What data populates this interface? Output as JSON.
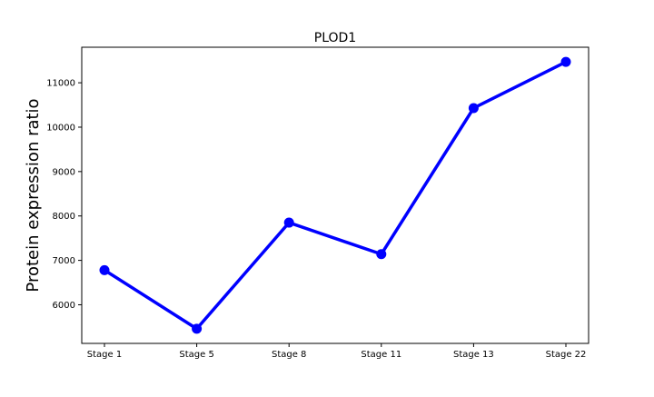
{
  "chart_data": {
    "type": "line",
    "title": "PLOD1",
    "xlabel": "",
    "ylabel": "Protein expression ratio",
    "categories": [
      "Stage 1",
      "Stage 5",
      "Stage 8",
      "Stage 11",
      "Stage 13",
      "Stage 22"
    ],
    "series": [
      {
        "values": [
          6780,
          5460,
          7850,
          7140,
          10430,
          11470
        ],
        "color": "#0000ff",
        "marker": "circle"
      }
    ],
    "ylim": [
      5130,
      11800
    ],
    "yticks": [
      6000,
      7000,
      8000,
      9000,
      10000,
      11000
    ],
    "grid": false,
    "legend": "none"
  }
}
